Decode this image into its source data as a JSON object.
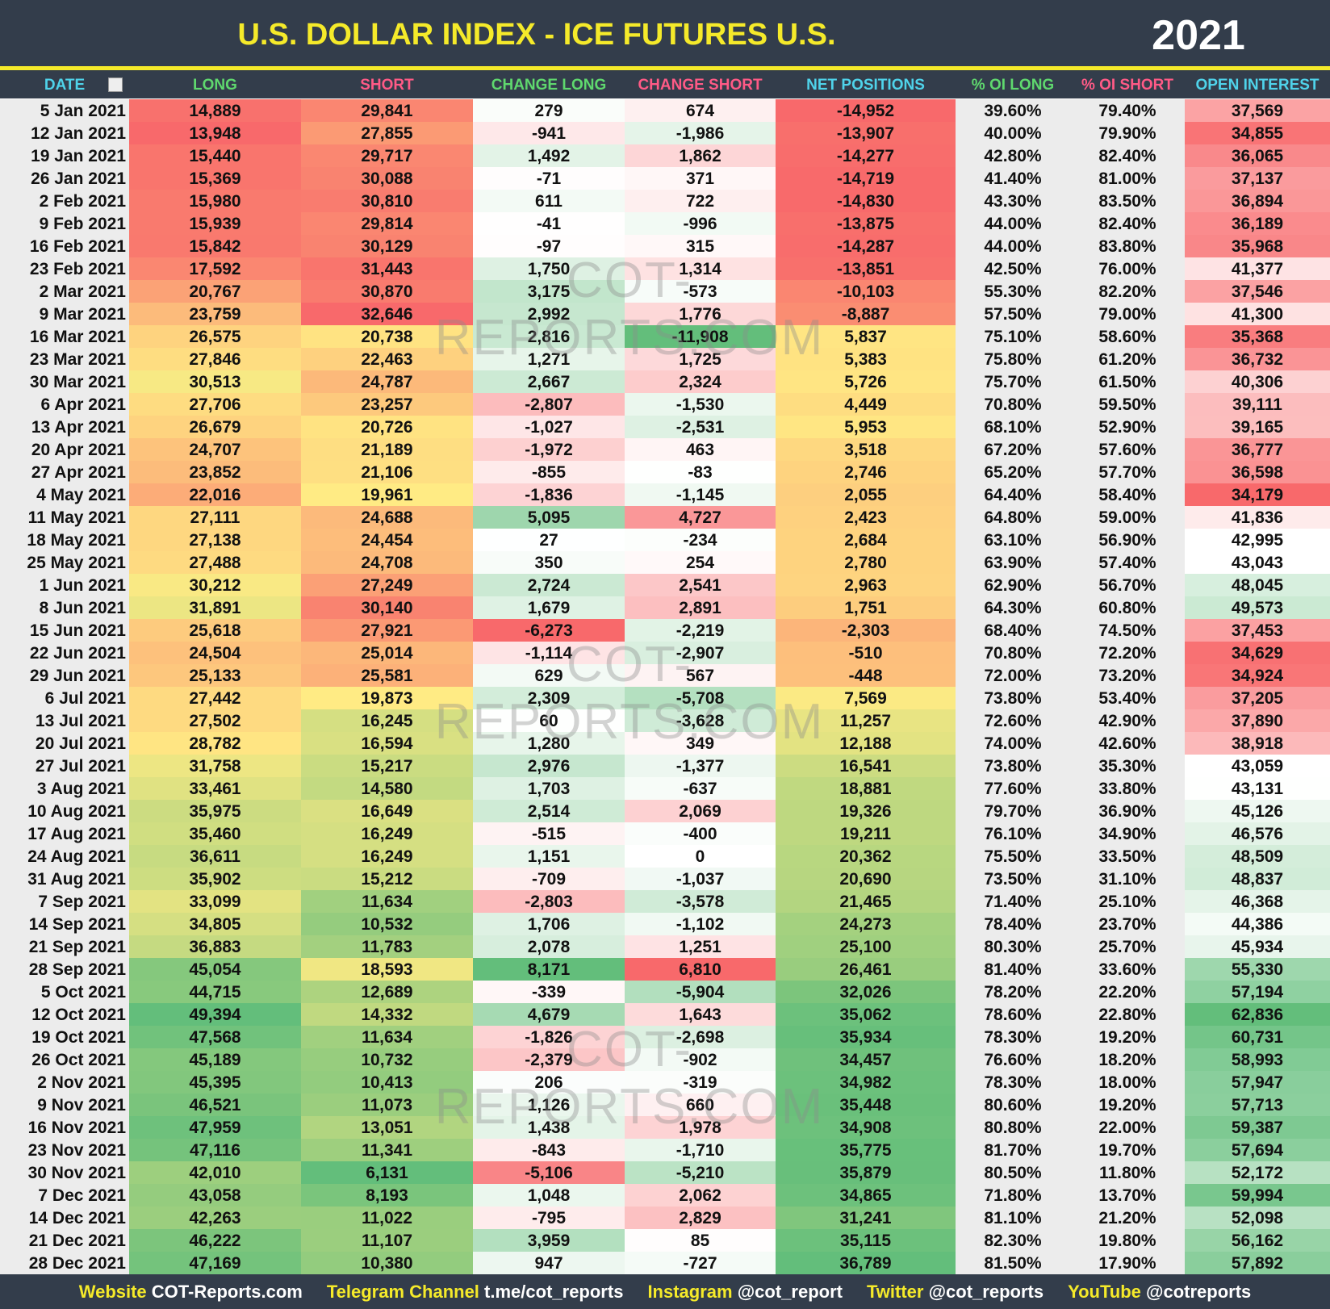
{
  "header": {
    "title": "U.S. DOLLAR INDEX - ICE FUTURES U.S.",
    "year": "2021"
  },
  "table": {
    "columns": [
      "DATE",
      "LONG",
      "SHORT",
      "CHANGE LONG",
      "CHANGE SHORT",
      "NET POSITIONS",
      "% OI LONG",
      "% OI SHORT",
      "OPEN INTEREST"
    ],
    "rows": [
      [
        "5 Jan 2021",
        "14,889",
        "29,841",
        "279",
        "674",
        "-14,952",
        "39.60%",
        "79.40%",
        "37,569"
      ],
      [
        "12 Jan 2021",
        "13,948",
        "27,855",
        "-941",
        "-1,986",
        "-13,907",
        "40.00%",
        "79.90%",
        "34,855"
      ],
      [
        "19 Jan 2021",
        "15,440",
        "29,717",
        "1,492",
        "1,862",
        "-14,277",
        "42.80%",
        "82.40%",
        "36,065"
      ],
      [
        "26 Jan 2021",
        "15,369",
        "30,088",
        "-71",
        "371",
        "-14,719",
        "41.40%",
        "81.00%",
        "37,137"
      ],
      [
        "2 Feb 2021",
        "15,980",
        "30,810",
        "611",
        "722",
        "-14,830",
        "43.30%",
        "83.50%",
        "36,894"
      ],
      [
        "9 Feb 2021",
        "15,939",
        "29,814",
        "-41",
        "-996",
        "-13,875",
        "44.00%",
        "82.40%",
        "36,189"
      ],
      [
        "16 Feb 2021",
        "15,842",
        "30,129",
        "-97",
        "315",
        "-14,287",
        "44.00%",
        "83.80%",
        "35,968"
      ],
      [
        "23 Feb 2021",
        "17,592",
        "31,443",
        "1,750",
        "1,314",
        "-13,851",
        "42.50%",
        "76.00%",
        "41,377"
      ],
      [
        "2 Mar 2021",
        "20,767",
        "30,870",
        "3,175",
        "-573",
        "-10,103",
        "55.30%",
        "82.20%",
        "37,546"
      ],
      [
        "9 Mar 2021",
        "23,759",
        "32,646",
        "2,992",
        "1,776",
        "-8,887",
        "57.50%",
        "79.00%",
        "41,300"
      ],
      [
        "16 Mar 2021",
        "26,575",
        "20,738",
        "2,816",
        "-11,908",
        "5,837",
        "75.10%",
        "58.60%",
        "35,368"
      ],
      [
        "23 Mar 2021",
        "27,846",
        "22,463",
        "1,271",
        "1,725",
        "5,383",
        "75.80%",
        "61.20%",
        "36,732"
      ],
      [
        "30 Mar 2021",
        "30,513",
        "24,787",
        "2,667",
        "2,324",
        "5,726",
        "75.70%",
        "61.50%",
        "40,306"
      ],
      [
        "6 Apr 2021",
        "27,706",
        "23,257",
        "-2,807",
        "-1,530",
        "4,449",
        "70.80%",
        "59.50%",
        "39,111"
      ],
      [
        "13 Apr 2021",
        "26,679",
        "20,726",
        "-1,027",
        "-2,531",
        "5,953",
        "68.10%",
        "52.90%",
        "39,165"
      ],
      [
        "20 Apr 2021",
        "24,707",
        "21,189",
        "-1,972",
        "463",
        "3,518",
        "67.20%",
        "57.60%",
        "36,777"
      ],
      [
        "27 Apr 2021",
        "23,852",
        "21,106",
        "-855",
        "-83",
        "2,746",
        "65.20%",
        "57.70%",
        "36,598"
      ],
      [
        "4 May 2021",
        "22,016",
        "19,961",
        "-1,836",
        "-1,145",
        "2,055",
        "64.40%",
        "58.40%",
        "34,179"
      ],
      [
        "11 May 2021",
        "27,111",
        "24,688",
        "5,095",
        "4,727",
        "2,423",
        "64.80%",
        "59.00%",
        "41,836"
      ],
      [
        "18 May 2021",
        "27,138",
        "24,454",
        "27",
        "-234",
        "2,684",
        "63.10%",
        "56.90%",
        "42,995"
      ],
      [
        "25 May 2021",
        "27,488",
        "24,708",
        "350",
        "254",
        "2,780",
        "63.90%",
        "57.40%",
        "43,043"
      ],
      [
        "1 Jun 2021",
        "30,212",
        "27,249",
        "2,724",
        "2,541",
        "2,963",
        "62.90%",
        "56.70%",
        "48,045"
      ],
      [
        "8 Jun 2021",
        "31,891",
        "30,140",
        "1,679",
        "2,891",
        "1,751",
        "64.30%",
        "60.80%",
        "49,573"
      ],
      [
        "15 Jun 2021",
        "25,618",
        "27,921",
        "-6,273",
        "-2,219",
        "-2,303",
        "68.40%",
        "74.50%",
        "37,453"
      ],
      [
        "22 Jun 2021",
        "24,504",
        "25,014",
        "-1,114",
        "-2,907",
        "-510",
        "70.80%",
        "72.20%",
        "34,629"
      ],
      [
        "29 Jun 2021",
        "25,133",
        "25,581",
        "629",
        "567",
        "-448",
        "72.00%",
        "73.20%",
        "34,924"
      ],
      [
        "6 Jul 2021",
        "27,442",
        "19,873",
        "2,309",
        "-5,708",
        "7,569",
        "73.80%",
        "53.40%",
        "37,205"
      ],
      [
        "13 Jul 2021",
        "27,502",
        "16,245",
        "60",
        "-3,628",
        "11,257",
        "72.60%",
        "42.90%",
        "37,890"
      ],
      [
        "20 Jul 2021",
        "28,782",
        "16,594",
        "1,280",
        "349",
        "12,188",
        "74.00%",
        "42.60%",
        "38,918"
      ],
      [
        "27 Jul 2021",
        "31,758",
        "15,217",
        "2,976",
        "-1,377",
        "16,541",
        "73.80%",
        "35.30%",
        "43,059"
      ],
      [
        "3 Aug 2021",
        "33,461",
        "14,580",
        "1,703",
        "-637",
        "18,881",
        "77.60%",
        "33.80%",
        "43,131"
      ],
      [
        "10 Aug 2021",
        "35,975",
        "16,649",
        "2,514",
        "2,069",
        "19,326",
        "79.70%",
        "36.90%",
        "45,126"
      ],
      [
        "17 Aug 2021",
        "35,460",
        "16,249",
        "-515",
        "-400",
        "19,211",
        "76.10%",
        "34.90%",
        "46,576"
      ],
      [
        "24 Aug 2021",
        "36,611",
        "16,249",
        "1,151",
        "0",
        "20,362",
        "75.50%",
        "33.50%",
        "48,509"
      ],
      [
        "31 Aug 2021",
        "35,902",
        "15,212",
        "-709",
        "-1,037",
        "20,690",
        "73.50%",
        "31.10%",
        "48,837"
      ],
      [
        "7 Sep 2021",
        "33,099",
        "11,634",
        "-2,803",
        "-3,578",
        "21,465",
        "71.40%",
        "25.10%",
        "46,368"
      ],
      [
        "14 Sep 2021",
        "34,805",
        "10,532",
        "1,706",
        "-1,102",
        "24,273",
        "78.40%",
        "23.70%",
        "44,386"
      ],
      [
        "21 Sep 2021",
        "36,883",
        "11,783",
        "2,078",
        "1,251",
        "25,100",
        "80.30%",
        "25.70%",
        "45,934"
      ],
      [
        "28 Sep 2021",
        "45,054",
        "18,593",
        "8,171",
        "6,810",
        "26,461",
        "81.40%",
        "33.60%",
        "55,330"
      ],
      [
        "5 Oct 2021",
        "44,715",
        "12,689",
        "-339",
        "-5,904",
        "32,026",
        "78.20%",
        "22.20%",
        "57,194"
      ],
      [
        "12 Oct 2021",
        "49,394",
        "14,332",
        "4,679",
        "1,643",
        "35,062",
        "78.60%",
        "22.80%",
        "62,836"
      ],
      [
        "19 Oct 2021",
        "47,568",
        "11,634",
        "-1,826",
        "-2,698",
        "35,934",
        "78.30%",
        "19.20%",
        "60,731"
      ],
      [
        "26 Oct 2021",
        "45,189",
        "10,732",
        "-2,379",
        "-902",
        "34,457",
        "76.60%",
        "18.20%",
        "58,993"
      ],
      [
        "2 Nov 2021",
        "45,395",
        "10,413",
        "206",
        "-319",
        "34,982",
        "78.30%",
        "18.00%",
        "57,947"
      ],
      [
        "9 Nov 2021",
        "46,521",
        "11,073",
        "1,126",
        "660",
        "35,448",
        "80.60%",
        "19.20%",
        "57,713"
      ],
      [
        "16 Nov 2021",
        "47,959",
        "13,051",
        "1,438",
        "1,978",
        "34,908",
        "80.80%",
        "22.00%",
        "59,387"
      ],
      [
        "23 Nov 2021",
        "47,116",
        "11,341",
        "-843",
        "-1,710",
        "35,775",
        "81.70%",
        "19.70%",
        "57,694"
      ],
      [
        "30 Nov 2021",
        "42,010",
        "6,131",
        "-5,106",
        "-5,210",
        "35,879",
        "80.50%",
        "11.80%",
        "52,172"
      ],
      [
        "7 Dec 2021",
        "43,058",
        "8,193",
        "1,048",
        "2,062",
        "34,865",
        "71.80%",
        "13.70%",
        "59,994"
      ],
      [
        "14 Dec 2021",
        "42,263",
        "11,022",
        "-795",
        "2,829",
        "31,241",
        "81.10%",
        "21.20%",
        "52,098"
      ],
      [
        "21 Dec 2021",
        "46,222",
        "11,107",
        "3,959",
        "85",
        "35,115",
        "82.30%",
        "19.80%",
        "56,162"
      ],
      [
        "28 Dec 2021",
        "47,169",
        "10,380",
        "947",
        "-727",
        "36,789",
        "81.50%",
        "17.90%",
        "57,892"
      ]
    ]
  },
  "watermark": "COT-REPORTS.COM",
  "footer": [
    {
      "label": "Website",
      "value": "COT-Reports.com"
    },
    {
      "label": "Telegram Channel",
      "value": "t.me/cot_reports"
    },
    {
      "label": "Instagram",
      "value": "@cot_report"
    },
    {
      "label": "Twitter",
      "value": "@cot_reports"
    },
    {
      "label": "YouTube",
      "value": "@cotreports"
    }
  ]
}
